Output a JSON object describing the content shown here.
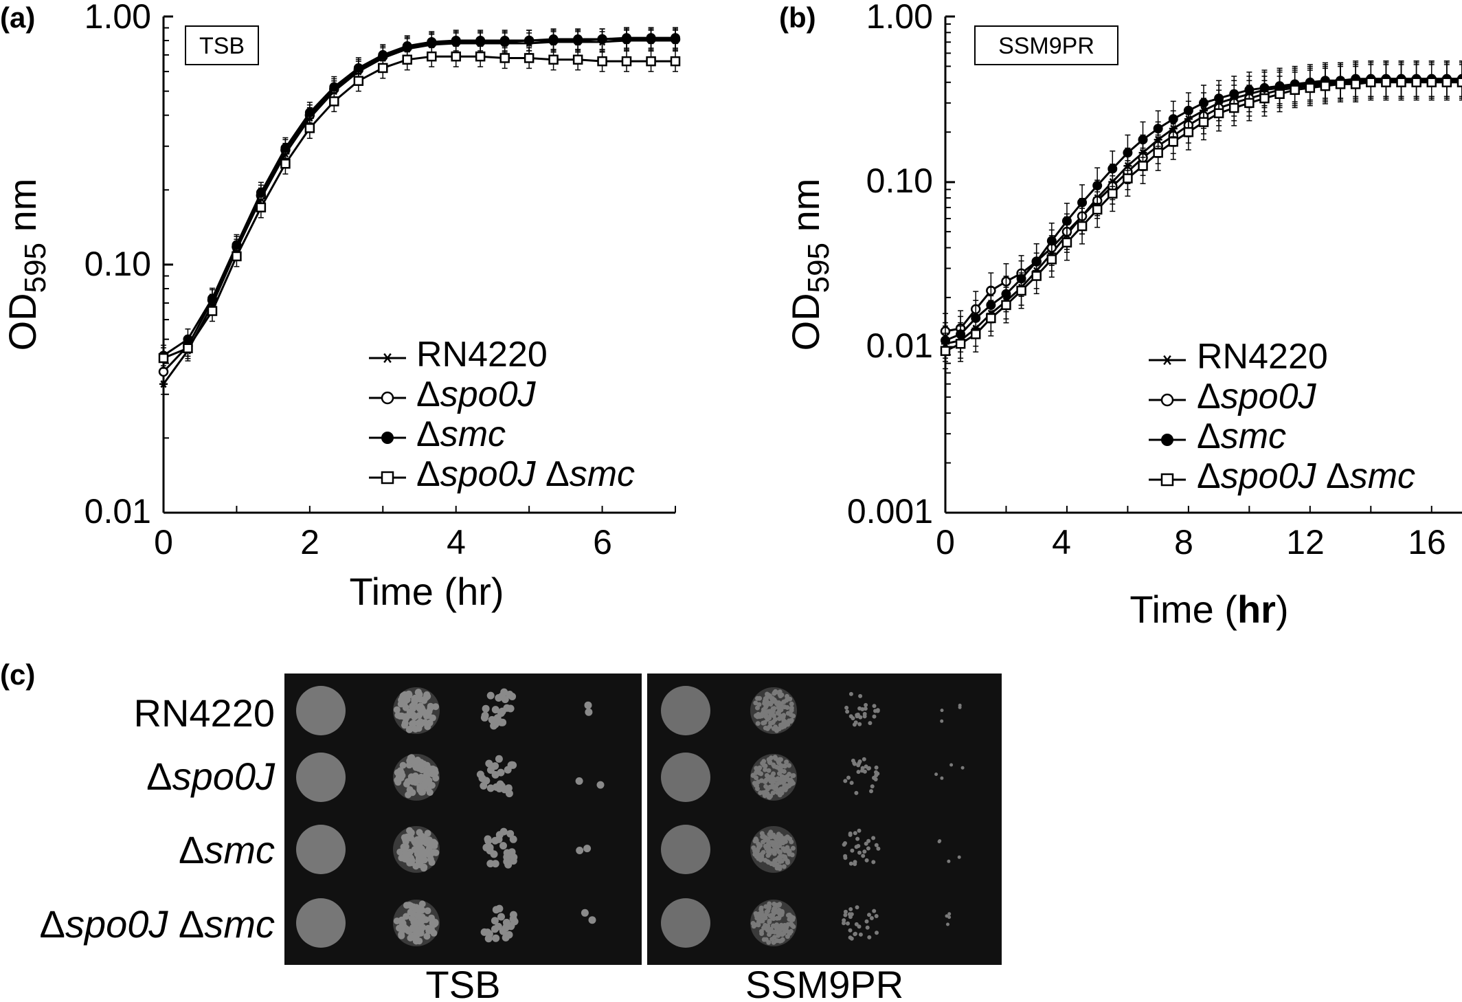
{
  "panels": [
    {
      "letter": "(a)",
      "medium": "TSB",
      "ylabel": {
        "main": "OD",
        "sub": "595",
        "tail": " nm"
      },
      "xlabel": {
        "pre": "Time (",
        "bold": "",
        "post": "hr)"
      },
      "xticks": [
        "0",
        "2",
        "4",
        "6"
      ],
      "yticks": [
        "0.01",
        "0.10",
        "1.00"
      ]
    },
    {
      "letter": "(b)",
      "medium": "SSM9PR",
      "ylabel": {
        "main": "OD",
        "sub": "595",
        "tail": " nm"
      },
      "xlabel": {
        "pre": "Time (",
        "bold": "hr",
        "post": ")"
      },
      "xticks": [
        "0",
        "4",
        "8",
        "12",
        "16"
      ],
      "yticks": [
        "0.001",
        "0.01",
        "0.10",
        "1.00"
      ]
    }
  ],
  "legend": [
    {
      "prefix": "",
      "italic1": "",
      "plain": "RN4220",
      "italic2": ""
    },
    {
      "prefix": "Δ",
      "italic1": "spo0J",
      "plain": "",
      "italic2": ""
    },
    {
      "prefix": "Δ",
      "italic1": "smc",
      "plain": "",
      "italic2": ""
    },
    {
      "prefix": "Δ",
      "italic1": "spo0J",
      "plain": " Δ",
      "italic2": "smc"
    }
  ],
  "plates": {
    "letter": "(c)",
    "rows": [
      {
        "prefix": "",
        "italic1": "",
        "plain": "RN4220",
        "italic2": ""
      },
      {
        "prefix": "Δ",
        "italic1": "spo0J",
        "plain": "",
        "italic2": ""
      },
      {
        "prefix": "Δ",
        "italic1": "smc",
        "plain": "",
        "italic2": ""
      },
      {
        "prefix": "Δ",
        "italic1": "spo0J",
        "plain": " Δ",
        "italic2": "smc"
      }
    ],
    "media": [
      "TSB",
      "SSM9PR"
    ]
  },
  "chart_data": [
    {
      "type": "line",
      "title": "TSB",
      "xlabel": "Time (hr)",
      "ylabel": "OD595 nm",
      "yscale": "log",
      "xlim": [
        0,
        7
      ],
      "ylim": [
        0.01,
        1.0
      ],
      "legend_position": "bottom-right",
      "x": [
        0,
        0.333,
        0.667,
        1.0,
        1.333,
        1.667,
        2.0,
        2.333,
        2.667,
        3.0,
        3.333,
        3.667,
        4.0,
        4.333,
        4.667,
        5.0,
        5.333,
        5.667,
        6.0,
        6.333,
        6.667,
        7.0
      ],
      "series": [
        {
          "name": "RN4220",
          "marker": "star",
          "values": [
            0.033,
            0.045,
            0.069,
            0.115,
            0.185,
            0.28,
            0.39,
            0.5,
            0.6,
            0.68,
            0.74,
            0.77,
            0.78,
            0.78,
            0.78,
            0.78,
            0.79,
            0.79,
            0.79,
            0.8,
            0.8,
            0.8
          ]
        },
        {
          "name": "Δspo0J",
          "marker": "open-circle",
          "values": [
            0.037,
            0.047,
            0.072,
            0.118,
            0.19,
            0.29,
            0.4,
            0.51,
            0.61,
            0.69,
            0.75,
            0.78,
            0.79,
            0.79,
            0.79,
            0.8,
            0.8,
            0.8,
            0.81,
            0.81,
            0.81,
            0.81
          ]
        },
        {
          "name": "Δsmc",
          "marker": "filled-circle",
          "values": [
            0.043,
            0.05,
            0.073,
            0.12,
            0.195,
            0.295,
            0.41,
            0.52,
            0.62,
            0.7,
            0.76,
            0.79,
            0.8,
            0.8,
            0.8,
            0.8,
            0.81,
            0.81,
            0.81,
            0.82,
            0.82,
            0.82
          ]
        },
        {
          "name": "Δspo0J Δsmc",
          "marker": "open-square",
          "values": [
            0.042,
            0.046,
            0.065,
            0.108,
            0.17,
            0.255,
            0.355,
            0.455,
            0.55,
            0.62,
            0.67,
            0.69,
            0.69,
            0.69,
            0.68,
            0.68,
            0.67,
            0.67,
            0.66,
            0.66,
            0.66,
            0.66
          ]
        }
      ]
    },
    {
      "type": "line",
      "title": "SSM9PR",
      "xlabel": "Time (hr)",
      "ylabel": "OD595 nm",
      "yscale": "log",
      "xlim": [
        0,
        17
      ],
      "ylim": [
        0.001,
        1.0
      ],
      "legend_position": "bottom-right",
      "x": [
        0,
        0.5,
        1,
        1.5,
        2,
        2.5,
        3,
        3.5,
        4,
        4.5,
        5,
        5.5,
        6,
        6.5,
        7,
        7.5,
        8,
        8.5,
        9,
        9.5,
        10,
        10.5,
        11,
        11.5,
        12,
        12.5,
        13,
        13.5,
        14,
        14.5,
        15,
        15.5,
        16,
        16.5,
        17
      ],
      "series": [
        {
          "name": "RN4220",
          "marker": "star",
          "values": [
            0.0105,
            0.011,
            0.013,
            0.016,
            0.019,
            0.023,
            0.029,
            0.037,
            0.048,
            0.062,
            0.08,
            0.1,
            0.125,
            0.15,
            0.18,
            0.21,
            0.24,
            0.27,
            0.3,
            0.32,
            0.34,
            0.36,
            0.37,
            0.38,
            0.39,
            0.4,
            0.41,
            0.41,
            0.42,
            0.42,
            0.42,
            0.42,
            0.42,
            0.42,
            0.42
          ]
        },
        {
          "name": "Δspo0J",
          "marker": "open-circle",
          "values": [
            0.0125,
            0.013,
            0.017,
            0.022,
            0.025,
            0.028,
            0.033,
            0.04,
            0.05,
            0.062,
            0.077,
            0.094,
            0.115,
            0.14,
            0.165,
            0.19,
            0.22,
            0.25,
            0.28,
            0.3,
            0.32,
            0.34,
            0.36,
            0.37,
            0.38,
            0.39,
            0.4,
            0.4,
            0.41,
            0.41,
            0.41,
            0.41,
            0.41,
            0.41,
            0.41
          ]
        },
        {
          "name": "Δsmc",
          "marker": "filled-circle",
          "values": [
            0.011,
            0.012,
            0.015,
            0.018,
            0.021,
            0.026,
            0.033,
            0.044,
            0.058,
            0.075,
            0.095,
            0.12,
            0.15,
            0.18,
            0.21,
            0.24,
            0.27,
            0.3,
            0.32,
            0.34,
            0.36,
            0.37,
            0.38,
            0.39,
            0.4,
            0.41,
            0.41,
            0.42,
            0.42,
            0.42,
            0.42,
            0.42,
            0.42,
            0.42,
            0.42
          ]
        },
        {
          "name": "Δspo0J Δsmc",
          "marker": "open-square",
          "values": [
            0.0095,
            0.0105,
            0.012,
            0.015,
            0.018,
            0.022,
            0.027,
            0.034,
            0.043,
            0.054,
            0.068,
            0.085,
            0.105,
            0.125,
            0.15,
            0.175,
            0.2,
            0.23,
            0.26,
            0.28,
            0.3,
            0.32,
            0.34,
            0.36,
            0.37,
            0.38,
            0.39,
            0.39,
            0.4,
            0.4,
            0.4,
            0.4,
            0.4,
            0.4,
            0.4
          ]
        }
      ]
    }
  ]
}
